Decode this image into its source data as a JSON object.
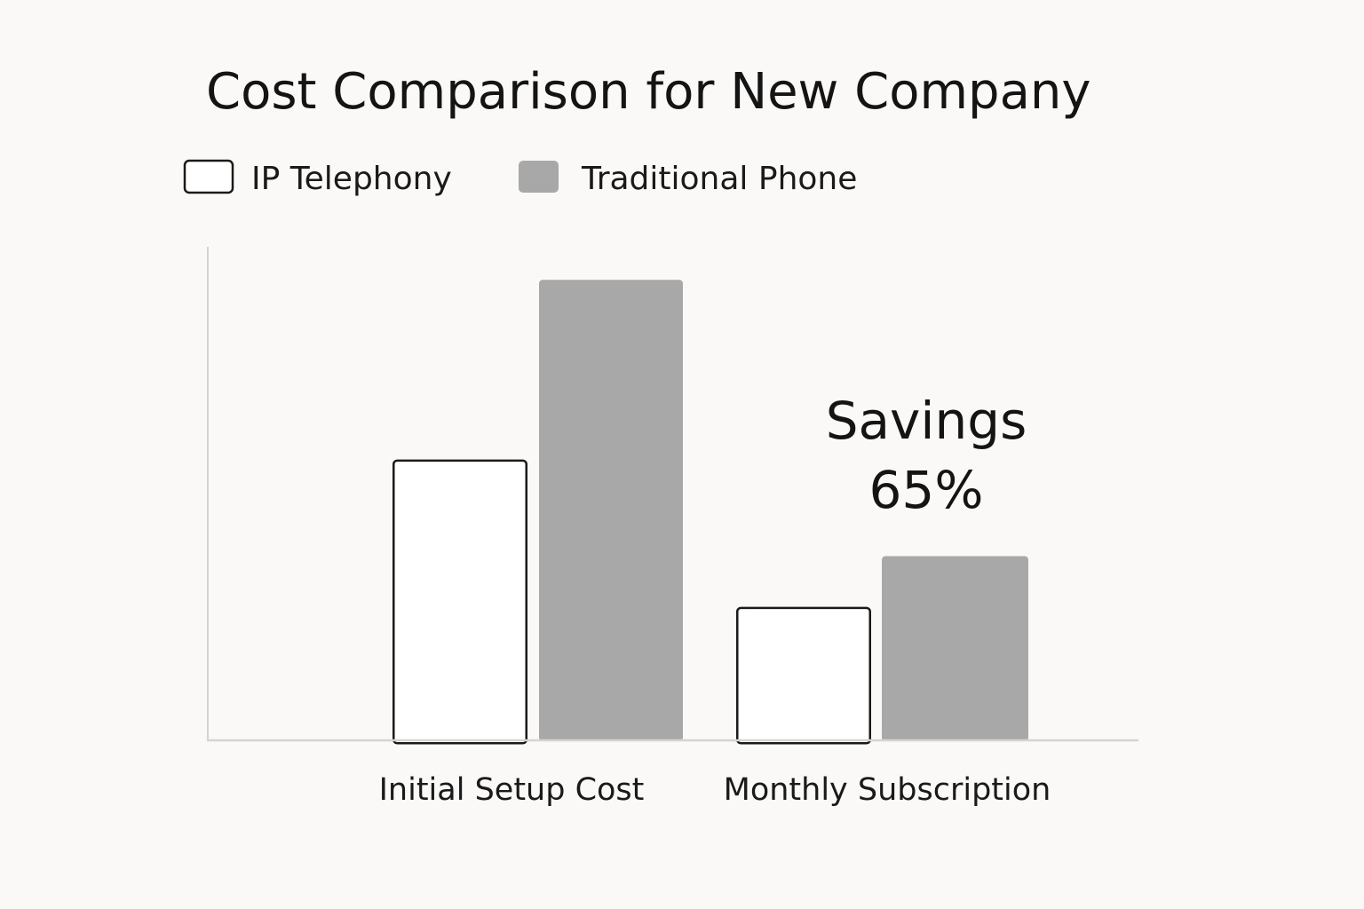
{
  "chart_data": {
    "type": "bar",
    "title": "Cost Comparison for New Company",
    "categories": [
      "Initial Setup Cost",
      "Monthly Subscription"
    ],
    "series": [
      {
        "name": "IP Telephony",
        "values": [
          61,
          29
        ],
        "fill": "#ffffff",
        "stroke": "#1a1a1a"
      },
      {
        "name": "Traditional Phone",
        "values": [
          100,
          40
        ],
        "fill": "#a8a8a8",
        "stroke": "#a8a8a8"
      }
    ],
    "ylim": [
      0,
      107
    ],
    "xlabel": "",
    "ylabel": "",
    "grid": false,
    "legend": "top-left",
    "annotation": {
      "line1": "Savings",
      "line2": "65%"
    }
  },
  "colors": {
    "background": "#fbf9f7",
    "axis": "#d4d4d4",
    "text": "#141414"
  }
}
